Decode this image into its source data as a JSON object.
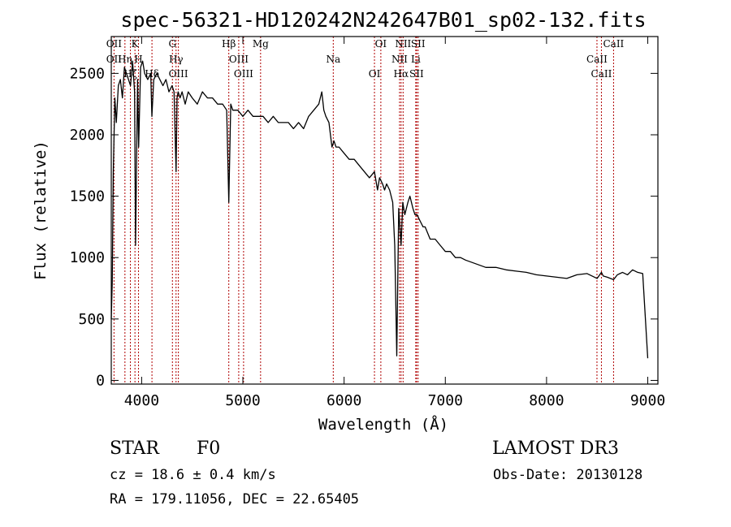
{
  "chart_data": {
    "type": "line",
    "title": "spec-56321-HD120242N242647B01_sp02-132.fits",
    "xlabel": "Wavelength (Å)",
    "ylabel": "Flux (relative)",
    "xlim": [
      3700,
      9100
    ],
    "ylim": [
      -30,
      2800
    ],
    "xticks": [
      4000,
      5000,
      6000,
      7000,
      8000,
      9000
    ],
    "yticks": [
      0,
      500,
      1000,
      1500,
      2000,
      2500
    ],
    "grid": false,
    "series": [
      {
        "x": [
          3700,
          3710,
          3720,
          3735,
          3750,
          3770,
          3790,
          3810,
          3830,
          3850,
          3870,
          3890,
          3910,
          3930,
          3940,
          3960,
          3970,
          3990,
          4010,
          4030,
          4060,
          4090,
          4101,
          4120,
          4150,
          4180,
          4210,
          4240,
          4270,
          4300,
          4320,
          4340,
          4350,
          4360,
          4380,
          4400,
          4430,
          4460,
          4500,
          4550,
          4600,
          4650,
          4700,
          4750,
          4800,
          4840,
          4861,
          4880,
          4900,
          4950,
          5000,
          5050,
          5100,
          5150,
          5200,
          5250,
          5300,
          5350,
          5400,
          5450,
          5500,
          5550,
          5600,
          5650,
          5700,
          5750,
          5780,
          5800,
          5820,
          5850,
          5880,
          5900,
          5920,
          5950,
          6000,
          6050,
          6100,
          6150,
          6200,
          6250,
          6300,
          6330,
          6350,
          6380,
          6400,
          6420,
          6450,
          6480,
          6500,
          6520,
          6540,
          6563,
          6580,
          6600,
          6630,
          6650,
          6680,
          6700,
          6720,
          6750,
          6780,
          6800,
          6850,
          6900,
          6950,
          7000,
          7050,
          7100,
          7150,
          7200,
          7300,
          7400,
          7500,
          7600,
          7700,
          7800,
          7900,
          8000,
          8100,
          8200,
          8300,
          8400,
          8450,
          8500,
          8542,
          8560,
          8600,
          8662,
          8700,
          8750,
          8800,
          8850,
          8900,
          8950,
          9000
        ],
        "y": [
          500,
          800,
          1700,
          2300,
          2100,
          2400,
          2450,
          2300,
          2550,
          2500,
          2450,
          2400,
          2600,
          2350,
          1100,
          2450,
          1900,
          2550,
          2600,
          2500,
          2450,
          2500,
          2150,
          2450,
          2500,
          2450,
          2400,
          2450,
          2350,
          2400,
          2350,
          1700,
          2300,
          2350,
          2300,
          2350,
          2250,
          2350,
          2300,
          2250,
          2350,
          2300,
          2300,
          2250,
          2250,
          2200,
          1450,
          2250,
          2200,
          2200,
          2150,
          2200,
          2150,
          2150,
          2150,
          2100,
          2150,
          2100,
          2100,
          2100,
          2050,
          2100,
          2050,
          2150,
          2200,
          2250,
          2350,
          2200,
          2150,
          2100,
          1900,
          1950,
          1900,
          1900,
          1850,
          1800,
          1800,
          1750,
          1700,
          1650,
          1700,
          1550,
          1650,
          1600,
          1550,
          1600,
          1550,
          1450,
          1100,
          200,
          1400,
          1100,
          1450,
          1350,
          1450,
          1500,
          1400,
          1350,
          1350,
          1300,
          1250,
          1250,
          1150,
          1150,
          1100,
          1050,
          1050,
          1000,
          1000,
          980,
          950,
          920,
          920,
          900,
          890,
          880,
          860,
          850,
          840,
          830,
          860,
          870,
          850,
          830,
          880,
          850,
          840,
          820,
          860,
          880,
          860,
          900,
          880,
          870,
          180
        ]
      }
    ],
    "lines": [
      {
        "wl": 3727,
        "labels": [
          "OII",
          "OII"
        ]
      },
      {
        "wl": 3835,
        "labels": [
          "Hη"
        ]
      },
      {
        "wl": 3889,
        "labels": [
          "Hζ"
        ]
      },
      {
        "wl": 3934,
        "labels": [
          "K"
        ]
      },
      {
        "wl": 3969,
        "labels": [
          "H"
        ]
      },
      {
        "wl": 4102,
        "labels": [
          "Hδ"
        ]
      },
      {
        "wl": 4304,
        "labels": [
          "G"
        ]
      },
      {
        "wl": 4340,
        "labels": [
          "Hγ"
        ]
      },
      {
        "wl": 4363,
        "labels": [
          "OIII"
        ]
      },
      {
        "wl": 4861,
        "labels": [
          "Hβ"
        ]
      },
      {
        "wl": 4959,
        "labels": [
          "OIII"
        ]
      },
      {
        "wl": 5007,
        "labels": [
          "OIII"
        ]
      },
      {
        "wl": 5175,
        "labels": [
          "Mg"
        ]
      },
      {
        "wl": 5893,
        "labels": [
          "Na"
        ]
      },
      {
        "wl": 6300,
        "labels": [
          "OI"
        ]
      },
      {
        "wl": 6363,
        "labels": [
          "OI"
        ]
      },
      {
        "wl": 6548,
        "labels": [
          "NII"
        ]
      },
      {
        "wl": 6563,
        "labels": [
          "Hα"
        ]
      },
      {
        "wl": 6583,
        "labels": [
          "NII"
        ]
      },
      {
        "wl": 6708,
        "labels": [
          "Li"
        ]
      },
      {
        "wl": 6716,
        "labels": [
          "SII"
        ]
      },
      {
        "wl": 6731,
        "labels": [
          "SII"
        ]
      },
      {
        "wl": 8498,
        "labels": [
          "CaII"
        ]
      },
      {
        "wl": 8542,
        "labels": [
          "CaII"
        ]
      },
      {
        "wl": 8662,
        "labels": [
          "CaII"
        ]
      }
    ]
  },
  "info": {
    "class": "STAR",
    "subclass": "F0",
    "survey": "LAMOST DR3",
    "cz": "cz = 18.6 ± 0.4 km/s",
    "obs_date": "Obs-Date: 20130128",
    "radec": "RA = 179.11056, DEC =  22.65405"
  }
}
